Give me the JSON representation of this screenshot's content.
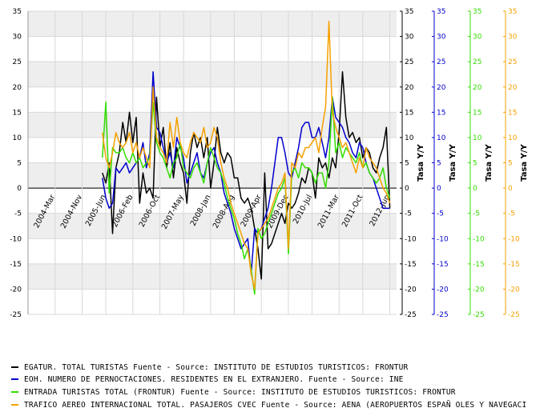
{
  "chart_data": {
    "type": "line",
    "x_tick_labels": [
      "2004-Mar",
      "2004-Nov",
      "2005-Jun",
      "2006-Feb",
      "2006-Oct",
      "2007-May",
      "2008-Jan",
      "2008-Aug",
      "2009-Apr",
      "2009-Dec",
      "2010-Jul",
      "2011-Mar",
      "2011-Oct",
      "2012-Jun"
    ],
    "x_tick_positions": [
      0,
      8,
      15,
      23,
      31,
      38,
      46,
      53,
      61,
      69,
      76,
      84,
      91,
      99
    ],
    "x_range": [
      -8,
      101
    ],
    "y_ticks": [
      -25,
      -20,
      -15,
      -10,
      -5,
      0,
      5,
      10,
      15,
      20,
      25,
      30,
      35
    ],
    "ylim": [
      -25,
      35
    ],
    "axes": [
      {
        "label": "Tasa Y/Y",
        "color": "#000000",
        "ylim": [
          -25,
          35
        ]
      },
      {
        "label": "Tasa Y/Y",
        "color": "#0000cc",
        "ylim": [
          -25,
          35
        ]
      },
      {
        "label": "Tasa Y/Y",
        "color": "#33dd00",
        "ylim": [
          -25,
          35
        ]
      },
      {
        "label": "Tasa Y/Y",
        "color": "#f5a000",
        "ylim": [
          -25,
          35
        ]
      }
    ],
    "grid": true,
    "band_fill": "#eeeeee",
    "legend_position": "bottom",
    "series": [
      {
        "name": "EGATUR. TOTAL TURISTAS  Fuente - Source: INSTITUTO DE ESTUDIOS TURISTICOS: FRONTUR",
        "color": "#000000",
        "x": [
          14,
          15,
          16,
          17,
          18,
          19,
          20,
          21,
          22,
          23,
          24,
          25,
          26,
          27,
          28,
          29,
          30,
          31,
          32,
          33,
          34,
          35,
          36,
          37,
          38,
          39,
          40,
          41,
          42,
          43,
          44,
          45,
          46,
          47,
          48,
          49,
          50,
          51,
          52,
          53,
          54,
          55,
          56,
          57,
          58,
          59,
          60,
          61,
          62,
          63,
          64,
          65,
          66,
          67,
          68,
          69,
          70,
          71,
          72,
          73,
          74,
          75,
          76,
          77,
          78,
          79,
          80,
          81,
          82,
          83,
          84,
          85,
          86,
          87,
          88,
          89,
          90,
          91,
          92,
          93,
          94,
          95,
          96,
          97,
          98,
          99
        ],
        "y": [
          3,
          1,
          5,
          -9,
          4,
          7,
          13,
          9,
          15,
          9,
          14,
          -3,
          3,
          -1,
          0,
          -2,
          18,
          8,
          12,
          4,
          9,
          2,
          8,
          5,
          3,
          -3,
          7,
          11,
          8,
          10,
          6,
          10,
          0,
          5,
          12,
          7,
          5,
          7,
          6,
          2,
          2,
          -2,
          -3,
          -2,
          -4,
          -8,
          -12,
          -18,
          3,
          -12,
          -11,
          -9,
          -7,
          -5,
          -7,
          -3,
          -4,
          -3,
          -1,
          2,
          1,
          4,
          3,
          -2,
          6,
          4,
          5,
          2,
          6,
          4,
          11,
          23,
          14,
          10,
          11,
          9,
          10,
          6,
          8,
          7,
          4,
          3,
          6,
          8,
          12,
          -4
        ]
      },
      {
        "name": "EOH. NUMERO DE PERNOCTACIONES. RESIDENTES EN EL EXTRANJERO.  Fuente - Source: INE",
        "color": "#0000cc",
        "x": [
          14,
          15,
          16,
          17,
          18,
          19,
          20,
          21,
          22,
          23,
          24,
          25,
          26,
          27,
          28,
          29,
          30,
          31,
          32,
          33,
          34,
          35,
          36,
          37,
          38,
          39,
          40,
          41,
          42,
          43,
          44,
          45,
          46,
          47,
          48,
          49,
          50,
          51,
          52,
          53,
          54,
          55,
          56,
          57,
          58,
          59,
          60,
          61,
          62,
          63,
          64,
          65,
          66,
          67,
          68,
          69,
          70,
          71,
          72,
          73,
          74,
          75,
          76,
          77,
          78,
          79,
          80,
          81,
          82,
          83,
          84,
          85,
          86,
          87,
          88,
          89,
          90,
          91,
          92,
          93,
          94,
          95,
          96,
          97,
          98,
          99
        ],
        "y": [
          2,
          -2,
          -4,
          -3,
          4,
          3,
          4,
          5,
          3,
          4,
          5,
          6,
          9,
          4,
          7,
          23,
          12,
          11,
          8,
          5,
          7,
          4,
          10,
          8,
          6,
          1,
          3,
          5,
          7,
          3,
          2,
          5,
          7,
          8,
          5,
          3,
          -1,
          -3,
          -5,
          -8,
          -10,
          -12,
          -11,
          -10,
          -17,
          -8,
          -9,
          -8,
          -6,
          -4,
          0,
          5,
          10,
          10,
          7,
          3,
          2,
          5,
          8,
          12,
          13,
          13,
          10,
          10,
          12,
          9,
          6,
          10,
          18,
          14,
          13,
          12,
          10,
          9,
          7,
          6,
          9,
          8,
          5,
          3,
          2,
          0,
          -2,
          -4,
          -4,
          -4
        ]
      },
      {
        "name": "ENTRADA TURISTAS TOTAL (FRONTUR)  Fuente - Source: INSTITUTO DE ESTUDIOS TURISTICOS: FRONTUR",
        "color": "#33dd00",
        "x": [
          14,
          15,
          16,
          17,
          18,
          19,
          20,
          21,
          22,
          23,
          24,
          25,
          26,
          27,
          28,
          29,
          30,
          31,
          32,
          33,
          34,
          35,
          36,
          37,
          38,
          39,
          40,
          41,
          42,
          43,
          44,
          45,
          46,
          47,
          48,
          49,
          50,
          51,
          52,
          53,
          54,
          55,
          56,
          57,
          58,
          59,
          60,
          61,
          62,
          63,
          64,
          65,
          66,
          67,
          68,
          69,
          70,
          71,
          72,
          73,
          74,
          75,
          76,
          77,
          78,
          79,
          80,
          81,
          82,
          83,
          84,
          85,
          86,
          87,
          88,
          89,
          90,
          91,
          92,
          93,
          94,
          95,
          96,
          97,
          98,
          99
        ],
        "y": [
          6,
          17,
          -1,
          8,
          7,
          7,
          8,
          6,
          5,
          7,
          5,
          6,
          4,
          5,
          6,
          17,
          9,
          7,
          6,
          4,
          2,
          5,
          6,
          9,
          4,
          3,
          2,
          4,
          5,
          3,
          1,
          5,
          8,
          6,
          4,
          3,
          1,
          -2,
          -4,
          -6,
          -9,
          -11,
          -14,
          -12,
          -16,
          -21,
          -8,
          -10,
          -9,
          -7,
          -5,
          -3,
          -1,
          0,
          2,
          -13,
          3,
          4,
          2,
          5,
          4,
          4,
          3,
          1,
          3,
          3,
          0,
          5,
          18,
          7,
          9,
          6,
          8,
          7,
          6,
          5,
          7,
          4,
          5,
          3,
          2,
          1,
          2,
          4,
          0,
          -2
        ]
      },
      {
        "name": "TRAFICO AEREO INTERNACIONAL TOTAL. PASAJEROS CVEC  Fuente - Source: AENA (AEROPUERTOS ESPAÑ OLES Y NAVEGACI",
        "color": "#f5a000",
        "x": [
          14,
          15,
          16,
          17,
          18,
          19,
          20,
          21,
          22,
          23,
          24,
          25,
          26,
          27,
          28,
          29,
          30,
          31,
          32,
          33,
          34,
          35,
          36,
          37,
          38,
          39,
          40,
          41,
          42,
          43,
          44,
          45,
          46,
          47,
          48,
          49,
          50,
          51,
          52,
          53,
          54,
          55,
          56,
          57,
          58,
          59,
          60,
          61,
          62,
          63,
          64,
          65,
          66,
          67,
          68,
          69,
          70,
          71,
          72,
          73,
          74,
          75,
          76,
          77,
          78,
          79,
          80,
          81,
          82,
          83,
          84,
          85,
          86,
          87,
          88,
          89,
          90,
          91,
          92,
          93,
          94,
          95,
          96,
          97,
          98,
          99
        ],
        "y": [
          11,
          6,
          4,
          7,
          11,
          9,
          8,
          9,
          11,
          7,
          9,
          6,
          8,
          6,
          4,
          20,
          10,
          8,
          7,
          5,
          13,
          8,
          14,
          9,
          7,
          6,
          9,
          11,
          10,
          9,
          12,
          8,
          9,
          12,
          10,
          5,
          2,
          0,
          -3,
          -5,
          -7,
          -9,
          -11,
          -12,
          -17,
          -20,
          -9,
          -8,
          -7,
          -6,
          -4,
          -2,
          0,
          1,
          3,
          -12,
          5,
          4,
          7,
          6,
          8,
          8,
          9,
          10,
          7,
          12,
          16,
          33,
          15,
          12,
          10,
          8,
          9,
          7,
          5,
          3,
          6,
          4,
          8,
          6,
          5,
          4,
          2,
          0,
          -1,
          -3
        ]
      }
    ]
  }
}
